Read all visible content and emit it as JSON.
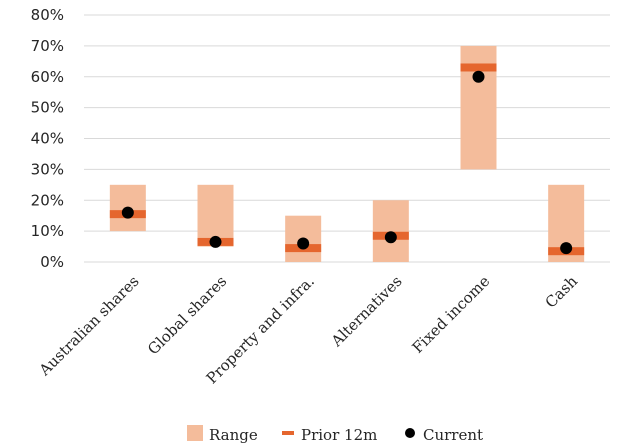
{
  "chart_data": {
    "type": "bar",
    "categories": [
      "Australian shares",
      "Global shares",
      "Property and infra.",
      "Alternatives",
      "Fixed income",
      "Cash"
    ],
    "series": [
      {
        "name": "Range",
        "kind": "floating-bar",
        "low": [
          10,
          5,
          0,
          0,
          30,
          0
        ],
        "high": [
          25,
          25,
          15,
          20,
          70,
          25
        ]
      },
      {
        "name": "Prior 12m",
        "kind": "marker-dash",
        "values": [
          15.5,
          6.5,
          4.5,
          8.5,
          63,
          3.5
        ]
      },
      {
        "name": "Current",
        "kind": "marker-dot",
        "values": [
          16,
          6.5,
          6,
          8,
          60,
          4.5
        ]
      }
    ],
    "ylim": [
      0,
      80
    ],
    "yticks": [
      "0%",
      "10%",
      "20%",
      "30%",
      "40%",
      "50%",
      "60%",
      "70%",
      "80%"
    ],
    "xlabel": "",
    "ylabel": "",
    "grid": true,
    "legend_position": "bottom",
    "colors": {
      "range": "#f4bc9b",
      "prior": "#e5662e",
      "current": "#000000",
      "grid": "#d9d9d9"
    }
  }
}
